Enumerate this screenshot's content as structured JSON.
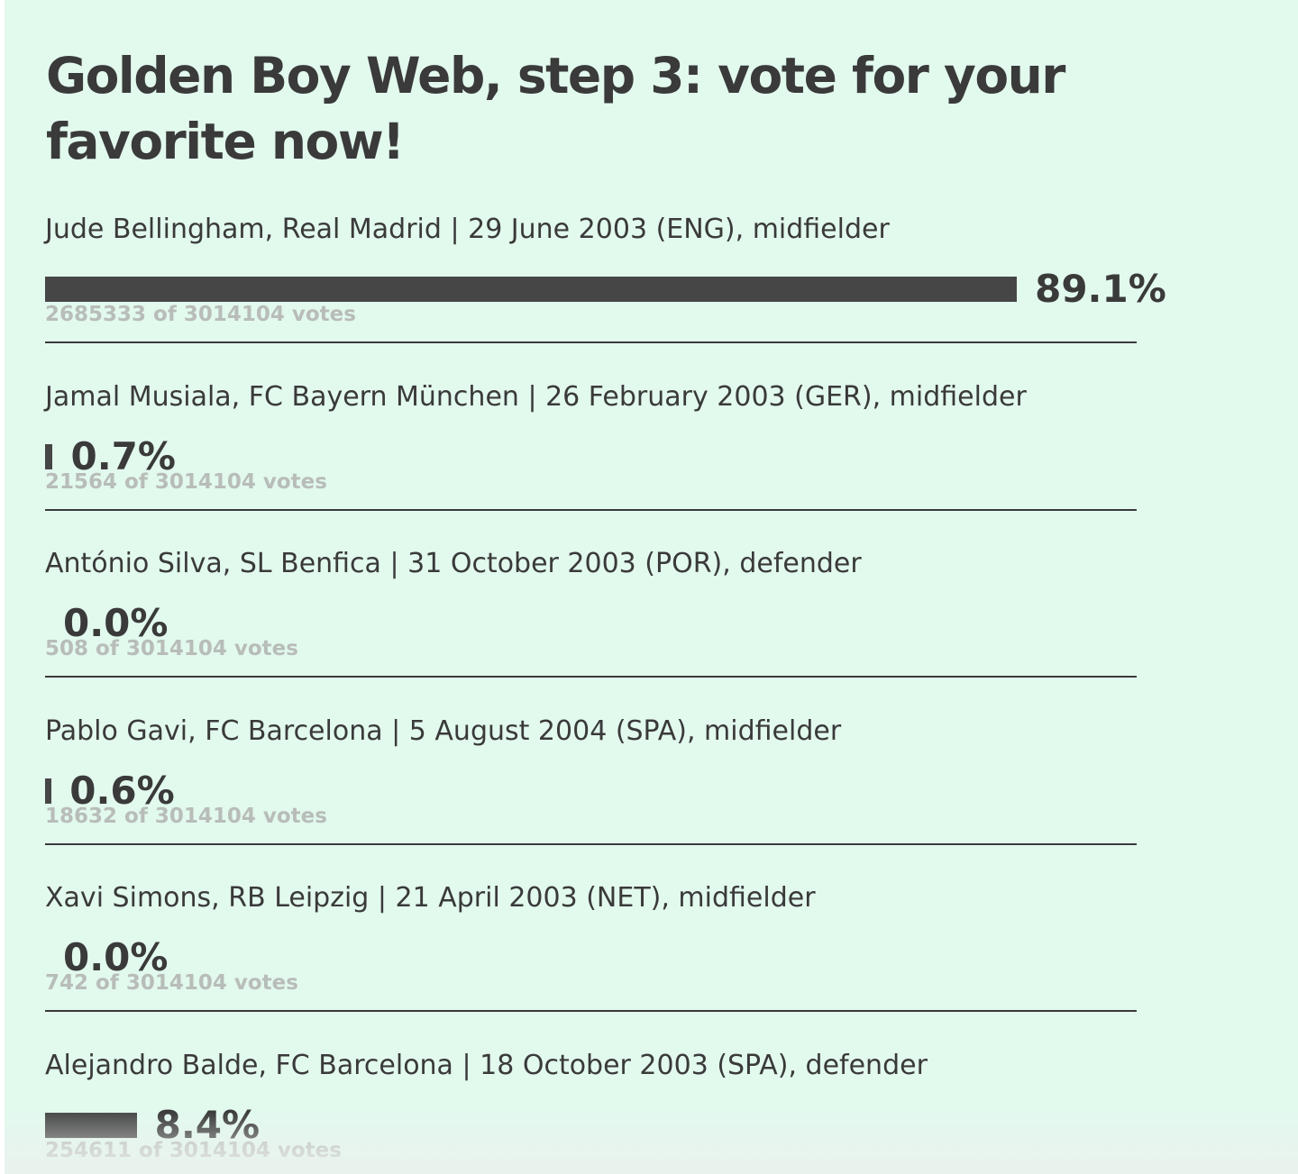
{
  "poll": {
    "title": "Golden Boy Web, step 3: vote for your favorite now!",
    "total_votes": 3014104,
    "colors": {
      "background": "#e2f9ee",
      "bar": "#464646",
      "text": "#3a3a3a",
      "vote_count_text": "#b8bdb9",
      "divider": "#3a3a3a"
    },
    "options": [
      {
        "label": "Jude Bellingham, Real Madrid | 29 June 2003 (ENG), midfielder",
        "percent_label": "89.1%",
        "percent": 89.1,
        "votes_label": "2685333 of 3014104 votes"
      },
      {
        "label": "Jamal Musiala, FC Bayern München | 26 February 2003 (GER), midfielder",
        "percent_label": "0.7%",
        "percent": 0.7,
        "votes_label": "21564 of 3014104 votes"
      },
      {
        "label": "António Silva, SL Benfica | 31 October 2003 (POR), defender",
        "percent_label": "0.0%",
        "percent": 0.0,
        "votes_label": "508 of 3014104 votes"
      },
      {
        "label": "Pablo Gavi, FC Barcelona | 5 August 2004 (SPA), midfielder",
        "percent_label": "0.6%",
        "percent": 0.6,
        "votes_label": "18632 of 3014104 votes"
      },
      {
        "label": "Xavi Simons, RB Leipzig | 21 April 2003 (NET), midfielder",
        "percent_label": "0.0%",
        "percent": 0.0,
        "votes_label": "742 of 3014104 votes"
      },
      {
        "label": "Alejandro Balde, FC Barcelona | 18 October 2003 (SPA), defender",
        "percent_label": "8.4%",
        "percent": 8.4,
        "votes_label": "254611 of 3014104 votes"
      }
    ]
  }
}
